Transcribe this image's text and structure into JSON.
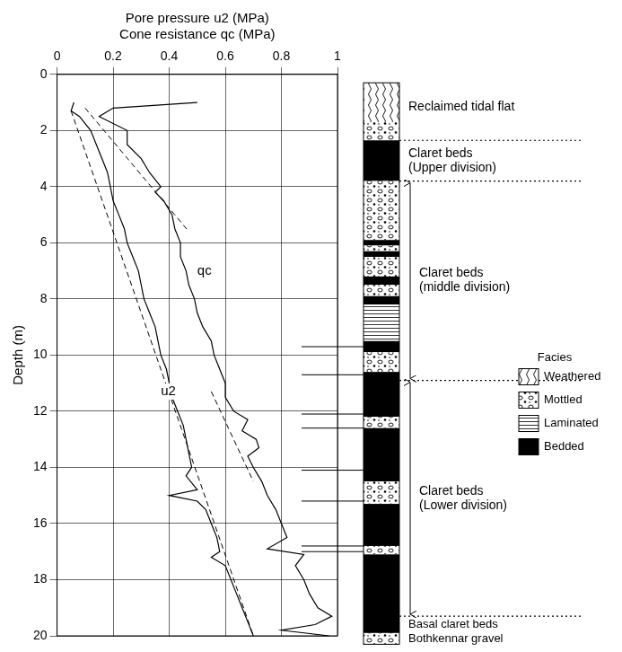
{
  "chart_data": {
    "type": "line",
    "xlabel": [
      "Pore pressure u2 (MPa)",
      "Cone resistance qc (MPa)"
    ],
    "ylabel": "Depth (m)",
    "xlim": [
      0,
      1
    ],
    "xticks": [
      0,
      0.2,
      0.4,
      0.6,
      0.8,
      1
    ],
    "ylim": [
      20,
      0
    ],
    "yticks": [
      0,
      2,
      4,
      6,
      8,
      10,
      12,
      14,
      16,
      18,
      20
    ],
    "grid": true,
    "series": [
      {
        "color": "#000000",
        "line_style": "solid",
        "x": [
          0.5,
          0.2,
          0.15,
          0.25,
          0.25,
          0.3,
          0.33,
          0.37,
          0.35,
          0.38,
          0.41,
          0.42,
          0.44,
          0.44,
          0.46,
          0.47,
          0.49,
          0.5,
          0.52,
          0.55,
          0.56,
          0.58,
          0.6,
          0.6,
          0.63,
          0.68,
          0.66,
          0.71,
          0.72,
          0.68,
          0.7,
          0.73,
          0.75,
          0.78,
          0.8,
          0.82,
          0.75,
          0.88,
          0.85,
          0.88,
          0.9,
          0.93,
          0.98,
          0.92,
          0.8,
          0.97
        ],
        "y": [
          1.0,
          1.2,
          1.5,
          2,
          2.5,
          3,
          3.5,
          4,
          4.2,
          4.5,
          5,
          5.5,
          6,
          6.5,
          7,
          7.5,
          8,
          8.5,
          9,
          9.5,
          10,
          10.5,
          11,
          11.5,
          12,
          12.3,
          12.7,
          13,
          13.3,
          13.6,
          14,
          14.5,
          15,
          15.5,
          16,
          16.5,
          16.9,
          17.1,
          17.5,
          18,
          18.5,
          19,
          19.3,
          19.6,
          19.8,
          20
        ]
      },
      {
        "color": "#000000",
        "line_style": "solid",
        "x": [
          0.06,
          0.05,
          0.08,
          0.12,
          0.14,
          0.16,
          0.18,
          0.19,
          0.2,
          0.22,
          0.24,
          0.25,
          0.27,
          0.29,
          0.3,
          0.31,
          0.33,
          0.35,
          0.36,
          0.37,
          0.39,
          0.4,
          0.41,
          0.43,
          0.45,
          0.46,
          0.47,
          0.48,
          0.46,
          0.5,
          0.4,
          0.5,
          0.53,
          0.55,
          0.57,
          0.58,
          0.55,
          0.6,
          0.62,
          0.64,
          0.66,
          0.68,
          0.7
        ],
        "y": [
          1.0,
          1.3,
          1.5,
          2,
          2.5,
          3,
          3.5,
          4,
          4.5,
          5,
          5.5,
          6,
          6.5,
          7,
          7.5,
          8,
          8.5,
          9,
          9.5,
          10,
          10.5,
          11,
          11.5,
          12,
          12.5,
          13,
          13.5,
          14,
          14.3,
          14.8,
          15,
          15.2,
          15.5,
          16,
          16.5,
          17,
          17.2,
          17.5,
          18,
          18.5,
          19,
          19.5,
          20
        ]
      },
      {
        "color": "#000000",
        "line_style": "dashed",
        "x": [
          0.05,
          0.7
        ],
        "y": [
          1.3,
          20
        ]
      },
      {
        "color": "#000000",
        "line_style": "dashed",
        "x": [
          0.1,
          0.47
        ],
        "y": [
          1.2,
          5.6
        ]
      },
      {
        "color": "#000000",
        "line_style": "dashed",
        "x": [
          0.55,
          0.7
        ],
        "y": [
          11.3,
          14.5
        ]
      }
    ],
    "annotations": [
      {
        "text": "qc",
        "x": 0.5,
        "y": 7
      },
      {
        "text": "u2",
        "x": 0.37,
        "y": 11.3
      }
    ],
    "boundary_marks": [
      9.7,
      10.7,
      12.1,
      12.6,
      14.1,
      15.2,
      16.8,
      17.0
    ]
  },
  "column": {
    "units": [
      {
        "label": "Reclaimed tidal flat",
        "top": 0,
        "bottom": 2.35
      },
      {
        "label": "Claret beds (Upper division)",
        "top": 2.35,
        "bottom": 3.8
      },
      {
        "label": "Claret beds (middle division)",
        "top": 3.8,
        "bottom": 10.9,
        "arrow": true
      },
      {
        "label": "Claret beds (Lower division)",
        "top": 10.9,
        "bottom": 19.3,
        "arrow": true
      },
      {
        "label": "Basal claret beds",
        "top": 19.3,
        "bottom": 19.9
      },
      {
        "label": "Bothkennar gravel",
        "top": 19.9,
        "bottom": 20.3
      }
    ],
    "layers": [
      {
        "facies": "Weathered",
        "top": 0.3,
        "bottom": 1.7
      },
      {
        "facies": "Mottled",
        "top": 1.7,
        "bottom": 2.35
      },
      {
        "facies": "Bedded",
        "top": 2.35,
        "bottom": 3.8
      },
      {
        "facies": "Mottled",
        "top": 3.8,
        "bottom": 5.9
      },
      {
        "facies": "Bedded",
        "top": 5.9,
        "bottom": 6.1
      },
      {
        "facies": "Mottled",
        "top": 6.1,
        "bottom": 6.3
      },
      {
        "facies": "Bedded",
        "top": 6.3,
        "bottom": 6.5
      },
      {
        "facies": "Mottled",
        "top": 6.5,
        "bottom": 7.2
      },
      {
        "facies": "Bedded",
        "top": 7.2,
        "bottom": 7.5
      },
      {
        "facies": "Mottled",
        "top": 7.5,
        "bottom": 7.9
      },
      {
        "facies": "Bedded",
        "top": 7.9,
        "bottom": 8.2
      },
      {
        "facies": "Laminated",
        "top": 8.2,
        "bottom": 9.5
      },
      {
        "facies": "Bedded",
        "top": 9.5,
        "bottom": 9.9
      },
      {
        "facies": "Mottled",
        "top": 9.9,
        "bottom": 10.6
      },
      {
        "facies": "Bedded",
        "top": 10.6,
        "bottom": 12.2
      },
      {
        "facies": "Mottled",
        "top": 12.2,
        "bottom": 12.6
      },
      {
        "facies": "Bedded",
        "top": 12.6,
        "bottom": 14.5
      },
      {
        "facies": "Mottled",
        "top": 14.5,
        "bottom": 15.3
      },
      {
        "facies": "Bedded",
        "top": 15.3,
        "bottom": 16.8
      },
      {
        "facies": "Mottled",
        "top": 16.8,
        "bottom": 17.1
      },
      {
        "facies": "Bedded",
        "top": 17.1,
        "bottom": 19.9
      },
      {
        "facies": "Mottled",
        "top": 19.9,
        "bottom": 20.3
      }
    ],
    "legend": {
      "title": "Facies",
      "items": [
        "Weathered",
        "Mottled",
        "Laminated",
        "Bedded"
      ]
    }
  }
}
